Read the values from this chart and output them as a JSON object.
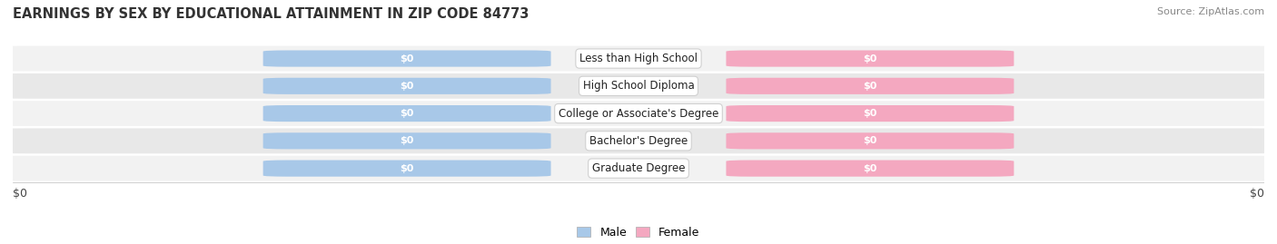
{
  "title": "EARNINGS BY SEX BY EDUCATIONAL ATTAINMENT IN ZIP CODE 84773",
  "source": "Source: ZipAtlas.com",
  "categories": [
    "Less than High School",
    "High School Diploma",
    "College or Associate's Degree",
    "Bachelor's Degree",
    "Graduate Degree"
  ],
  "male_values": [
    0,
    0,
    0,
    0,
    0
  ],
  "female_values": [
    0,
    0,
    0,
    0,
    0
  ],
  "male_color": "#a8c8e8",
  "female_color": "#f4a8c0",
  "male_label": "Male",
  "female_label": "Female",
  "background_color": "#ffffff",
  "row_colors": [
    "#f0f0f0",
    "#e6e6e6"
  ],
  "xlabel_left": "$0",
  "xlabel_right": "$0",
  "title_fontsize": 10.5,
  "source_fontsize": 8,
  "category_fontsize": 9
}
